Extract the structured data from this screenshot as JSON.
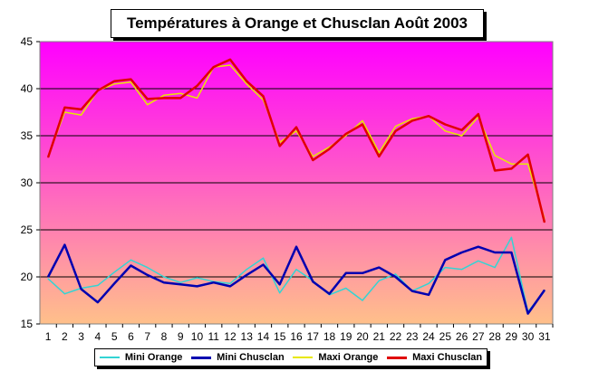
{
  "chart_data": {
    "type": "line",
    "title": "Températures à Orange et Chusclan Août 2003",
    "xlabel": "",
    "ylabel": "",
    "ylim": [
      15,
      45
    ],
    "yticks": [
      15,
      20,
      25,
      30,
      35,
      40,
      45
    ],
    "grid": true,
    "legend_position": "bottom",
    "x": [
      1,
      2,
      3,
      4,
      5,
      6,
      7,
      8,
      9,
      10,
      11,
      12,
      13,
      14,
      15,
      16,
      17,
      18,
      19,
      20,
      21,
      22,
      23,
      24,
      25,
      26,
      27,
      28,
      29,
      30,
      31
    ],
    "series": [
      {
        "name": "Mini Orange",
        "color": "#33d4d4",
        "width": 1.5,
        "values": [
          19.8,
          18.2,
          18.8,
          19.1,
          20.5,
          21.8,
          21.0,
          20.0,
          19.4,
          19.9,
          19.5,
          19.3,
          20.8,
          22.0,
          18.3,
          20.8,
          19.6,
          18.1,
          18.8,
          17.5,
          19.6,
          20.3,
          18.5,
          19.3,
          21.0,
          20.8,
          21.7,
          21.0,
          24.2,
          16.3,
          18.5
        ]
      },
      {
        "name": "Mini Chusclan",
        "color": "#0000b0",
        "width": 2.5,
        "values": [
          20.0,
          23.4,
          18.7,
          17.3,
          19.3,
          21.2,
          20.2,
          19.4,
          19.2,
          19.0,
          19.4,
          19.0,
          20.2,
          21.3,
          19.2,
          23.2,
          19.5,
          18.2,
          20.4,
          20.4,
          21.0,
          20.0,
          18.5,
          18.1,
          21.8,
          22.6,
          23.2,
          22.6,
          22.6,
          16.1,
          18.6
        ]
      },
      {
        "name": "Maxi Orange",
        "color": "#e8e800",
        "width": 1.5,
        "values": [
          32.8,
          37.5,
          37.2,
          39.8,
          40.5,
          40.7,
          38.3,
          39.3,
          39.5,
          39.0,
          42.3,
          42.5,
          40.5,
          38.8,
          34.3,
          35.5,
          32.8,
          33.8,
          35.0,
          36.6,
          33.2,
          36.0,
          36.8,
          37.1,
          35.5,
          35.0,
          37.0,
          32.9,
          32.0,
          32.0,
          26.2
        ]
      },
      {
        "name": "Maxi Chusclan",
        "color": "#e00000",
        "width": 2.5,
        "values": [
          32.7,
          38.0,
          37.8,
          39.8,
          40.8,
          41.0,
          38.9,
          39.0,
          39.0,
          40.3,
          42.3,
          43.1,
          40.8,
          39.2,
          33.9,
          35.9,
          32.4,
          33.6,
          35.2,
          36.2,
          32.8,
          35.5,
          36.6,
          37.1,
          36.2,
          35.6,
          37.3,
          31.3,
          31.5,
          33.0,
          25.8
        ]
      }
    ]
  },
  "legend": {
    "items": [
      {
        "label": "Mini Orange",
        "color": "#33d4d4"
      },
      {
        "label": "Mini Chusclan",
        "color": "#0000b0"
      },
      {
        "label": "Maxi Orange",
        "color": "#e8e800"
      },
      {
        "label": "Maxi Chusclan",
        "color": "#e00000"
      }
    ]
  },
  "colors": {
    "plot_gradient_top": "#ff00ff",
    "plot_gradient_bottom": "#ffc08a"
  }
}
